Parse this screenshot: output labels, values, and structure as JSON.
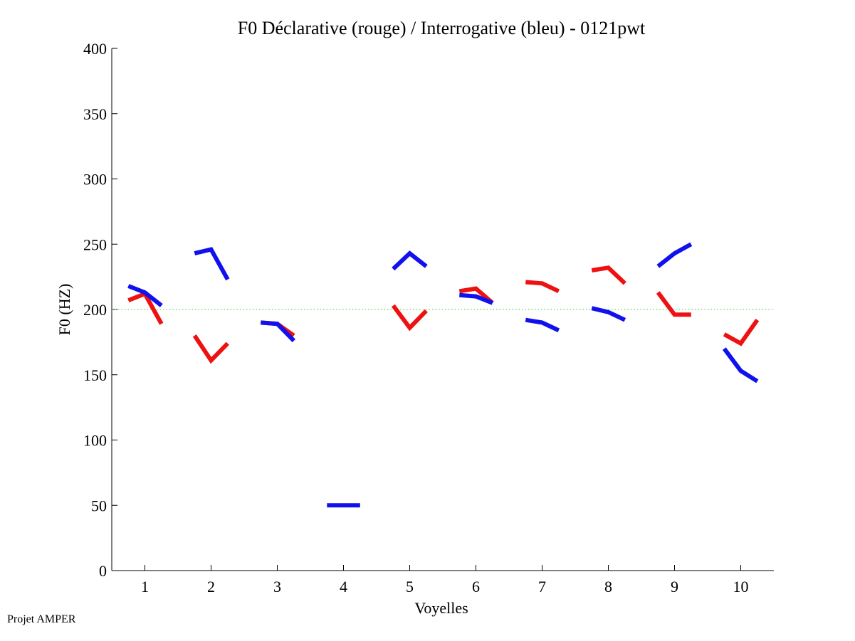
{
  "footer": {
    "label": "Projet AMPER"
  },
  "chart_data": {
    "type": "line",
    "title": "F0 Déclarative (rouge) / Interrogative (bleu) - 0121pwt",
    "xlabel": "Voyelles",
    "ylabel": "F0 (HZ)",
    "xlim": [
      0.5,
      10.5
    ],
    "ylim": [
      0,
      400
    ],
    "xticks": [
      1,
      2,
      3,
      4,
      5,
      6,
      7,
      8,
      9,
      10
    ],
    "yticks": [
      0,
      50,
      100,
      150,
      200,
      250,
      300,
      350,
      400
    ],
    "reference_line": {
      "y": 200,
      "color": "#33cc33",
      "style": "dotted"
    },
    "legend": "none",
    "series": [
      {
        "name": "Déclarative",
        "color": "#ee1111",
        "segments": [
          {
            "x": [
              0.75,
              1.0,
              1.25
            ],
            "y": [
              207,
              212,
              189
            ]
          },
          {
            "x": [
              1.75,
              2.0,
              2.25
            ],
            "y": [
              180,
              161,
              174
            ]
          },
          {
            "x": [
              2.75,
              3.0,
              3.25
            ],
            "y": [
              190,
              189,
              180
            ]
          },
          {
            "x": [
              4.75,
              5.0,
              5.25
            ],
            "y": [
              203,
              186,
              199
            ]
          },
          {
            "x": [
              5.75,
              6.0,
              6.25
            ],
            "y": [
              214,
              216,
              205
            ]
          },
          {
            "x": [
              6.75,
              7.0,
              7.25
            ],
            "y": [
              221,
              220,
              214
            ]
          },
          {
            "x": [
              7.75,
              8.0,
              8.25
            ],
            "y": [
              230,
              232,
              220
            ]
          },
          {
            "x": [
              8.75,
              9.0,
              9.25
            ],
            "y": [
              213,
              196,
              196
            ]
          },
          {
            "x": [
              9.75,
              10.0,
              10.25
            ],
            "y": [
              181,
              174,
              192
            ]
          }
        ]
      },
      {
        "name": "Interrogative",
        "color": "#1111ee",
        "segments": [
          {
            "x": [
              0.75,
              1.0,
              1.25
            ],
            "y": [
              218,
              213,
              203
            ]
          },
          {
            "x": [
              1.75,
              2.0,
              2.25
            ],
            "y": [
              243,
              246,
              223
            ]
          },
          {
            "x": [
              2.75,
              3.0,
              3.25
            ],
            "y": [
              190,
              189,
              176
            ]
          },
          {
            "x": [
              3.75,
              4.0,
              4.25
            ],
            "y": [
              50,
              50,
              50
            ]
          },
          {
            "x": [
              4.75,
              5.0,
              5.25
            ],
            "y": [
              231,
              243,
              233
            ]
          },
          {
            "x": [
              5.75,
              6.0,
              6.25
            ],
            "y": [
              211,
              210,
              205
            ]
          },
          {
            "x": [
              6.75,
              7.0,
              7.25
            ],
            "y": [
              192,
              190,
              184
            ]
          },
          {
            "x": [
              7.75,
              8.0,
              8.25
            ],
            "y": [
              201,
              198,
              192
            ]
          },
          {
            "x": [
              8.75,
              9.0,
              9.25
            ],
            "y": [
              233,
              243,
              250
            ]
          },
          {
            "x": [
              9.75,
              10.0,
              10.25
            ],
            "y": [
              170,
              153,
              145
            ]
          }
        ]
      }
    ]
  }
}
